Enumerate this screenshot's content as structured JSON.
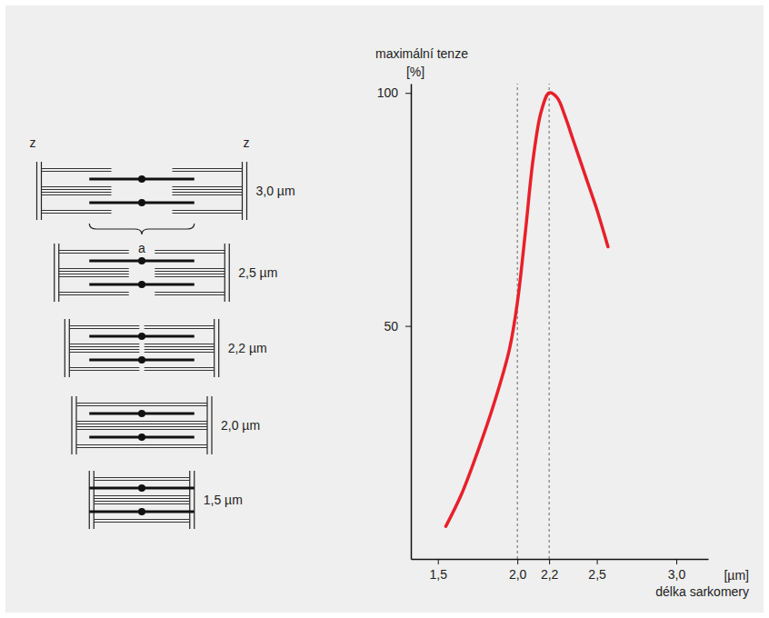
{
  "chart_data": {
    "type": "line",
    "ylabel": "maximální tenze",
    "yunit": "[%]",
    "xlabel": "délka sarkomery",
    "xunit": "[µm]",
    "x": [
      1.55,
      1.65,
      1.75,
      1.85,
      1.95,
      2.0,
      2.05,
      2.1,
      2.15,
      2.2,
      2.25,
      2.3,
      2.35,
      2.4,
      2.45,
      2.5,
      2.57
    ],
    "values": [
      7,
      14,
      23,
      33,
      45,
      55,
      70,
      86,
      96,
      100,
      99,
      95,
      90,
      85,
      80,
      75,
      67
    ],
    "color": "#e8202a",
    "xlim": [
      1.33,
      3.2
    ],
    "ylim": [
      0,
      102
    ],
    "xticks": [
      {
        "value": 1.5,
        "label": "1,5"
      },
      {
        "value": 2.0,
        "label": "2,0"
      },
      {
        "value": 2.2,
        "label": "2,2"
      },
      {
        "value": 2.5,
        "label": "2,5"
      },
      {
        "value": 3.0,
        "label": "3,0"
      }
    ],
    "yticks": [
      50,
      100
    ],
    "vlines": [
      2.0,
      2.2
    ]
  },
  "diagram": {
    "z_labels": [
      "z",
      "z"
    ],
    "brace_label": "a",
    "sarcomeres": [
      {
        "length": 3.0,
        "label": "3,0 µm"
      },
      {
        "length": 2.5,
        "label": "2,5 µm"
      },
      {
        "length": 2.2,
        "label": "2,2 µm"
      },
      {
        "length": 2.0,
        "label": "2,0 µm"
      },
      {
        "length": 1.5,
        "label": "1,5 µm"
      }
    ]
  }
}
